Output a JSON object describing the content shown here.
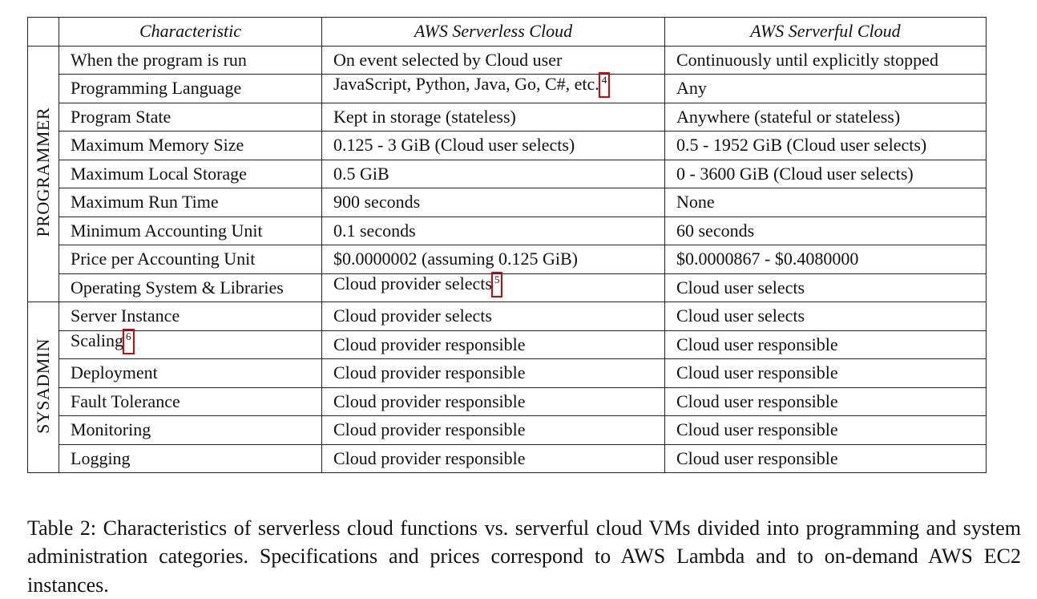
{
  "table": {
    "headers": [
      "Characteristic",
      "AWS Serverless Cloud",
      "AWS Serverful Cloud"
    ],
    "groups": [
      {
        "label": "PROGRAMMER",
        "rows": [
          {
            "characteristic": "When the program is run",
            "serverless": "On event selected by Cloud user",
            "serverful": "Continuously until explicitly stopped"
          },
          {
            "characteristic": "Programming Language",
            "serverless": "JavaScript, Python, Java, Go, C#, etc.",
            "serverless_footnote": "4",
            "serverful": "Any"
          },
          {
            "characteristic": "Program State",
            "serverless": "Kept in storage (stateless)",
            "serverful": "Anywhere (stateful or stateless)"
          },
          {
            "characteristic": "Maximum Memory Size",
            "serverless": "0.125 - 3 GiB (Cloud user selects)",
            "serverful": "0.5 - 1952 GiB (Cloud user selects)"
          },
          {
            "characteristic": "Maximum Local Storage",
            "serverless": "0.5 GiB",
            "serverful": "0 - 3600 GiB (Cloud user selects)"
          },
          {
            "characteristic": "Maximum Run Time",
            "serverless": "900 seconds",
            "serverful": "None"
          },
          {
            "characteristic": "Minimum Accounting Unit",
            "serverless": "0.1 seconds",
            "serverful": "60 seconds"
          },
          {
            "characteristic": "Price per Accounting Unit",
            "serverless": "$0.0000002 (assuming 0.125 GiB)",
            "serverful": "$0.0000867 - $0.4080000"
          },
          {
            "characteristic": "Operating System & Libraries",
            "serverless": "Cloud provider selects",
            "serverless_footnote": "5",
            "serverful": "Cloud user selects"
          }
        ]
      },
      {
        "label": "SYSADMIN",
        "rows": [
          {
            "characteristic": "Server Instance",
            "serverless": "Cloud provider selects",
            "serverful": "Cloud user selects"
          },
          {
            "characteristic": "Scaling",
            "characteristic_footnote": "6",
            "serverless": "Cloud provider responsible",
            "serverful": "Cloud user responsible"
          },
          {
            "characteristic": "Deployment",
            "serverless": "Cloud provider responsible",
            "serverful": "Cloud user responsible"
          },
          {
            "characteristic": "Fault Tolerance",
            "serverless": "Cloud provider responsible",
            "serverful": "Cloud user responsible"
          },
          {
            "characteristic": "Monitoring",
            "serverless": "Cloud provider responsible",
            "serverful": "Cloud user responsible"
          },
          {
            "characteristic": "Logging",
            "serverless": "Cloud provider responsible",
            "serverful": "Cloud user responsible"
          }
        ]
      }
    ]
  },
  "caption": "Table 2: Characteristics of serverless cloud functions vs. serverful cloud VMs divided into programming and system administration categories. Specifications and prices correspond to AWS Lambda and to on-demand AWS EC2 instances.",
  "colors": {
    "highlight_box": "#e00000",
    "rule": "#222222"
  }
}
